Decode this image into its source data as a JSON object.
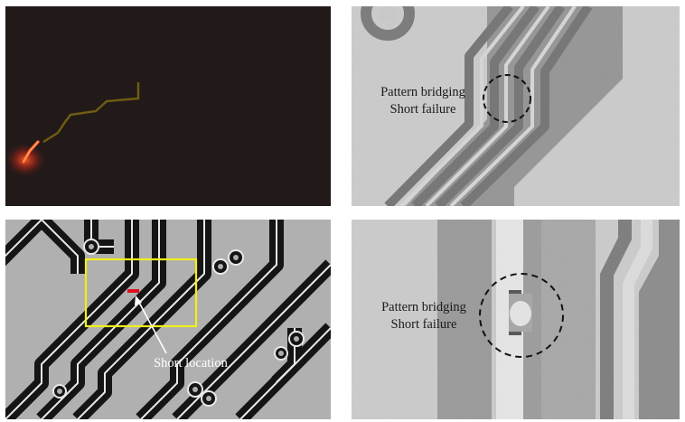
{
  "figure": {
    "panel_top_left": {
      "description_icon": "thermal-emission-hotspot-icon",
      "background": "#221a19"
    },
    "panel_top_right": {
      "label_line1": "Pattern bridging",
      "label_line2": "Short failure"
    },
    "panel_bottom_left": {
      "label": "Short location",
      "marker_color": "#e0101a",
      "box_color": "#f2ef1a"
    },
    "panel_bottom_right": {
      "label_line1": "Pattern bridging",
      "label_line2": "Short failure"
    }
  }
}
